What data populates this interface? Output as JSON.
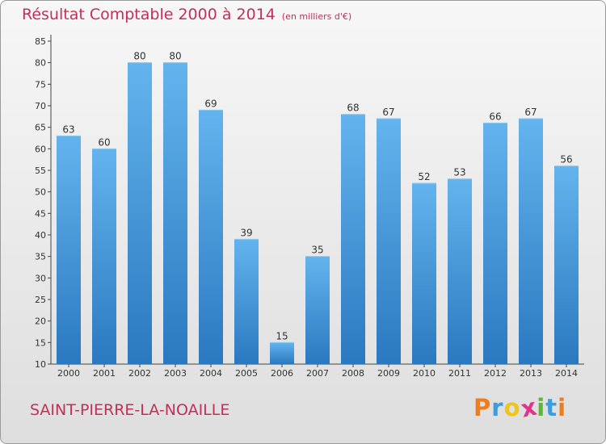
{
  "header": {
    "title": "Résultat Comptable 2000 à 2014",
    "subtitle": "(en milliers d'€)"
  },
  "footer": {
    "commune": "SAINT-PIERRE-LA-NOAILLE",
    "logo_letters": [
      "P",
      "r",
      "o",
      "x",
      "i",
      "t",
      "i"
    ],
    "logo_colors": [
      "#f07d1a",
      "#3b9de0",
      "#f0c419",
      "#e0338a",
      "#5bb832",
      "#3b9de0",
      "#f07d1a"
    ]
  },
  "colors": {
    "bar_light": "#63b4ee",
    "bar_dark": "#2a79bf",
    "text_accent": "#c2305a"
  },
  "chart_data": {
    "type": "bar",
    "categories": [
      "2000",
      "2001",
      "2002",
      "2003",
      "2004",
      "2005",
      "2006",
      "2007",
      "2008",
      "2009",
      "2010",
      "2011",
      "2012",
      "2013",
      "2014"
    ],
    "values": [
      63,
      60,
      80,
      80,
      69,
      39,
      15,
      35,
      68,
      67,
      52,
      53,
      66,
      67,
      56
    ],
    "title": "Résultat Comptable 2000 à 2014",
    "subtitle": "(en milliers d'€)",
    "ylim": [
      10,
      85
    ],
    "yticks": [
      10,
      15,
      20,
      25,
      30,
      35,
      40,
      45,
      50,
      55,
      60,
      65,
      70,
      75,
      80,
      85
    ],
    "grid": false,
    "legend": "none"
  }
}
